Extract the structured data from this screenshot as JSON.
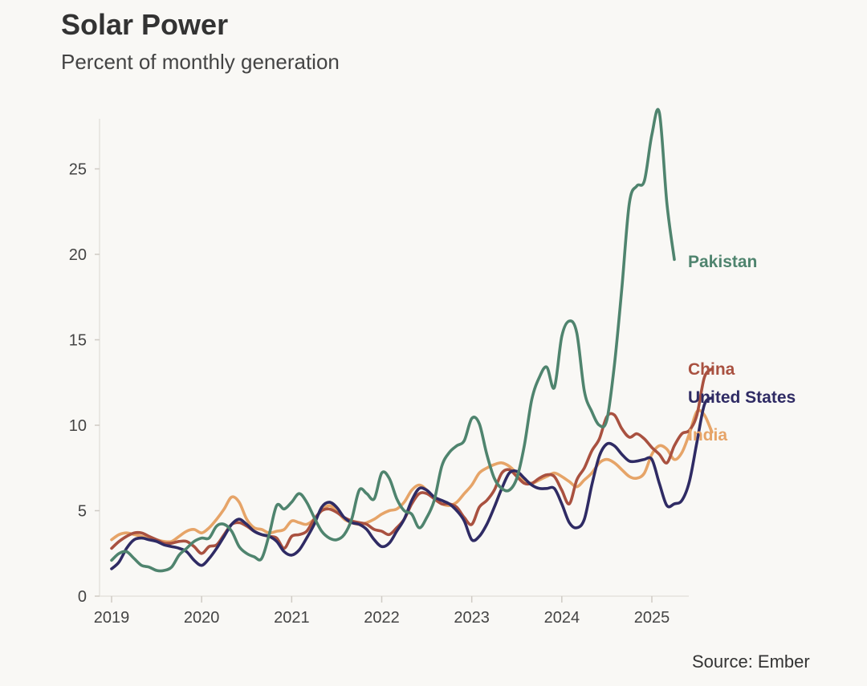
{
  "chart_data": {
    "type": "line",
    "title": "Solar Power",
    "subtitle": "Percent of monthly generation",
    "source": "Source: Ember",
    "y_ticks": [
      0,
      5,
      10,
      15,
      20,
      25
    ],
    "x_ticks": [
      "2019",
      "2020",
      "2021",
      "2022",
      "2023",
      "2024",
      "2025"
    ],
    "ylim": [
      0,
      28
    ],
    "x_start": "2019-01",
    "grid": false,
    "legend": "direct labels at line ends",
    "series": [
      {
        "name": "India",
        "color": "#e6a468",
        "values": [
          3.3,
          3.6,
          3.7,
          3.6,
          3.5,
          3.4,
          3.3,
          3.2,
          3.2,
          3.5,
          3.8,
          3.9,
          3.7,
          4.0,
          4.5,
          5.1,
          5.8,
          5.5,
          4.5,
          4.0,
          3.9,
          3.7,
          3.8,
          3.9,
          4.4,
          4.3,
          4.2,
          4.5,
          5.0,
          5.3,
          5.0,
          4.5,
          4.3,
          4.2,
          4.3,
          4.5,
          4.8,
          5.0,
          5.1,
          5.5,
          6.2,
          6.5,
          6.2,
          5.7,
          5.4,
          5.3,
          5.5,
          6.0,
          6.5,
          7.2,
          7.5,
          7.7,
          7.8,
          7.6,
          7.2,
          6.8,
          6.6,
          6.8,
          7.0,
          7.2,
          7.0,
          6.7,
          6.4,
          6.8,
          7.2,
          7.8,
          8.0,
          7.8,
          7.4,
          7.0,
          6.9,
          7.2,
          8.3,
          8.8,
          8.6,
          8.0,
          8.4,
          9.5,
          10.8,
          10.6,
          9.6
        ]
      },
      {
        "name": "China",
        "color": "#a95140",
        "values": [
          2.8,
          3.2,
          3.5,
          3.7,
          3.7,
          3.5,
          3.3,
          3.1,
          3.1,
          3.2,
          3.2,
          2.9,
          2.5,
          2.9,
          3.0,
          3.6,
          4.2,
          4.3,
          4.1,
          3.8,
          3.6,
          3.5,
          3.4,
          2.8,
          3.5,
          3.6,
          3.8,
          4.5,
          5.0,
          5.1,
          4.9,
          4.6,
          4.4,
          4.3,
          4.2,
          3.9,
          3.8,
          3.6,
          4.0,
          4.5,
          5.4,
          6.0,
          6.0,
          5.7,
          5.4,
          5.4,
          5.2,
          4.6,
          4.2,
          5.2,
          5.6,
          6.2,
          7.2,
          7.4,
          7.0,
          6.6,
          6.6,
          6.9,
          7.1,
          7.0,
          6.2,
          5.4,
          6.8,
          7.5,
          8.5,
          9.2,
          10.5,
          10.6,
          9.8,
          9.3,
          9.5,
          9.2,
          8.7,
          8.3,
          7.8,
          8.8,
          9.5,
          9.7,
          10.6,
          12.8,
          13.3
        ]
      },
      {
        "name": "United States",
        "color": "#2f2b64",
        "values": [
          1.6,
          2.0,
          2.8,
          3.3,
          3.4,
          3.3,
          3.2,
          3.0,
          2.9,
          2.8,
          2.6,
          2.1,
          1.8,
          2.2,
          2.8,
          3.5,
          4.2,
          4.5,
          4.2,
          3.8,
          3.6,
          3.5,
          3.2,
          2.6,
          2.4,
          2.7,
          3.4,
          4.2,
          5.2,
          5.5,
          5.2,
          4.6,
          4.3,
          4.2,
          3.9,
          3.3,
          2.9,
          3.1,
          3.8,
          4.5,
          5.6,
          6.3,
          6.2,
          5.8,
          5.6,
          5.4,
          5.0,
          4.4,
          3.3,
          3.5,
          4.2,
          5.2,
          6.3,
          7.2,
          7.3,
          6.9,
          6.5,
          6.3,
          6.3,
          6.3,
          5.4,
          4.3,
          4.0,
          4.5,
          6.5,
          8.2,
          8.9,
          8.8,
          8.3,
          7.9,
          7.9,
          8.0,
          8.0,
          6.6,
          5.3,
          5.4,
          5.6,
          6.7,
          9.0,
          11.2,
          11.6
        ]
      },
      {
        "name": "Pakistan",
        "color": "#4f846e",
        "values": [
          2.1,
          2.5,
          2.6,
          2.2,
          1.8,
          1.7,
          1.5,
          1.5,
          1.7,
          2.4,
          2.8,
          3.2,
          3.4,
          3.4,
          4.1,
          4.2,
          3.8,
          2.9,
          2.5,
          2.3,
          2.2,
          3.6,
          5.3,
          5.1,
          5.5,
          6.0,
          5.5,
          4.6,
          3.8,
          3.4,
          3.3,
          3.6,
          4.5,
          6.2,
          6.0,
          5.7,
          7.2,
          6.9,
          5.7,
          5.0,
          4.8,
          4.0,
          4.6,
          5.6,
          7.6,
          8.4,
          8.8,
          9.1,
          10.4,
          10.1,
          8.3,
          6.9,
          6.3,
          6.2,
          6.9,
          8.8,
          11.5,
          12.8,
          13.4,
          12.2,
          15.2,
          16.1,
          15.4,
          12.0,
          10.8,
          10.0,
          10.3,
          13.5,
          18.0,
          23.0,
          24.0,
          24.3,
          27.0,
          28.3,
          23.0,
          19.7
        ]
      }
    ]
  }
}
